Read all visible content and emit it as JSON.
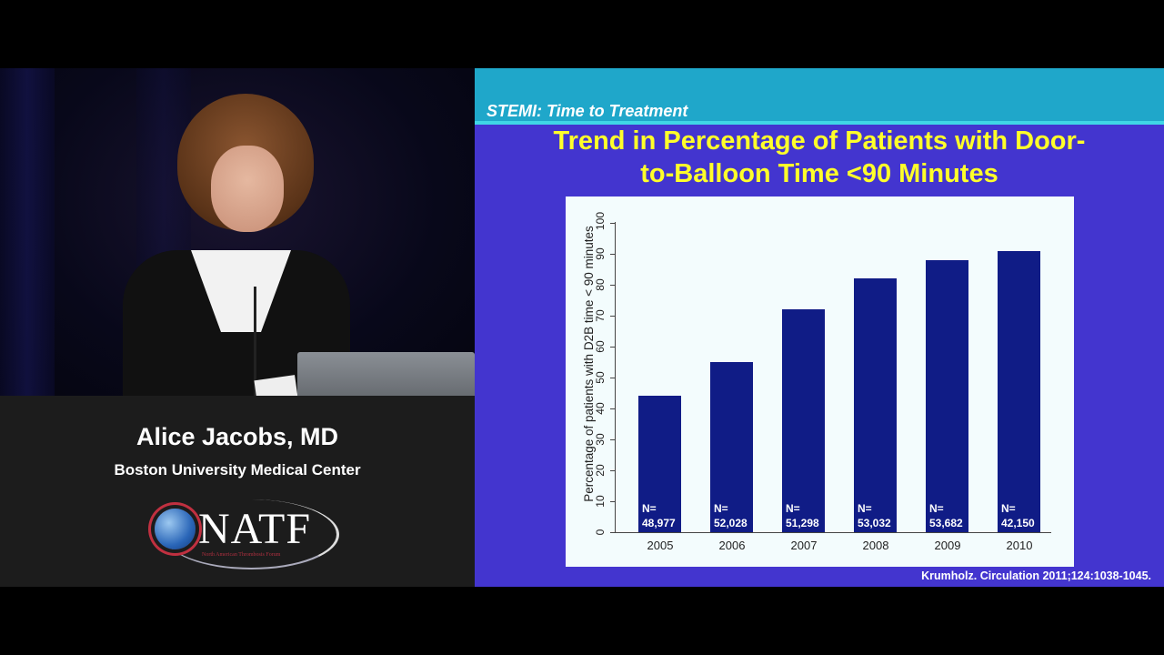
{
  "speaker": {
    "name": "Alice Jacobs, MD",
    "affiliation": "Boston University Medical Center"
  },
  "logo": {
    "text": "NATF",
    "subtitle": "North American Thrombosis Forum"
  },
  "slide": {
    "section": "STEMI:  Time to Treatment",
    "title_line1": "Trend in Percentage of Patients with Door-",
    "title_line2": "to-Balloon Time <90 Minutes",
    "citation": "Krumholz. Circulation 2011;124:1038-1045.",
    "colors": {
      "background": "#4335cf",
      "header": "#1fa7ca",
      "title": "#ffff2a",
      "bar": "#101c86"
    }
  },
  "chart_data": {
    "type": "bar",
    "title": "Trend in Percentage of Patients with Door-to-Balloon Time <90 Minutes",
    "xlabel": "",
    "ylabel": "Percentage of patients with D2B time < 90 minutes",
    "categories": [
      "2005",
      "2006",
      "2007",
      "2008",
      "2009",
      "2010"
    ],
    "values": [
      44,
      55,
      72,
      82,
      88,
      91
    ],
    "annotations": [
      {
        "n_label": "N=",
        "n_value": "48,977"
      },
      {
        "n_label": "N=",
        "n_value": "52,028"
      },
      {
        "n_label": "N=",
        "n_value": "51,298"
      },
      {
        "n_label": "N=",
        "n_value": "53,032"
      },
      {
        "n_label": "N=",
        "n_value": "53,682"
      },
      {
        "n_label": "N=",
        "n_value": "42,150"
      }
    ],
    "yticks": [
      "0",
      "10",
      "20",
      "30",
      "40",
      "50",
      "60",
      "70",
      "80",
      "90",
      "100"
    ],
    "ylim": [
      0,
      100
    ],
    "grid": false,
    "legend": null
  }
}
